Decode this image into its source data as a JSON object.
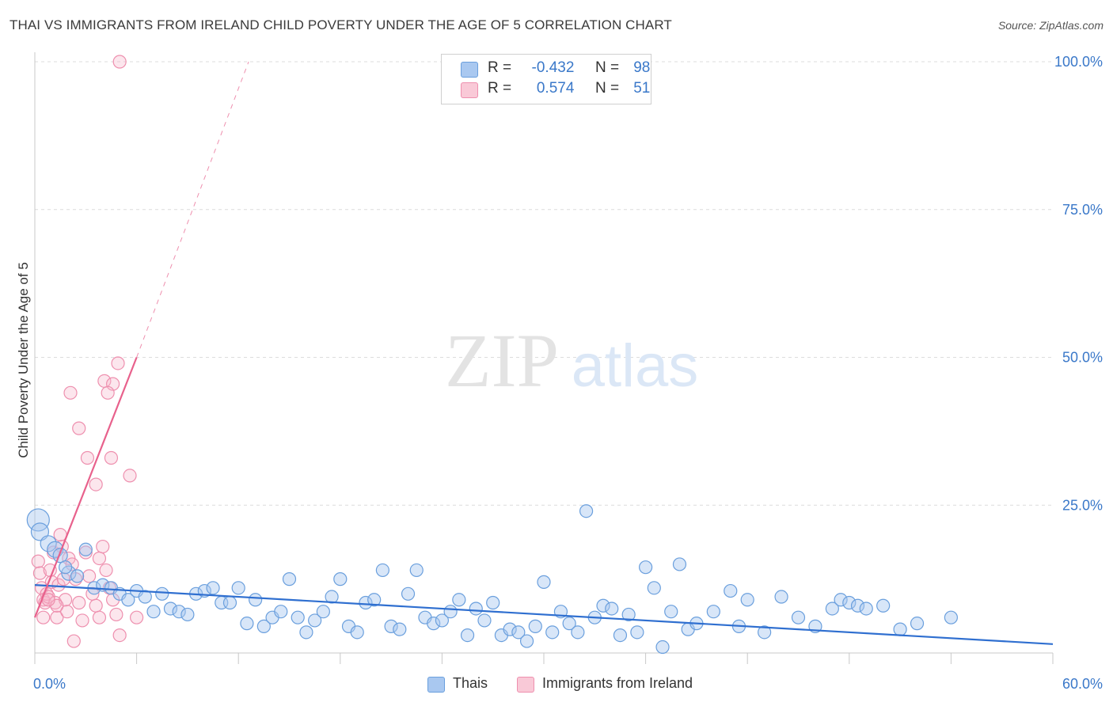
{
  "header": {
    "title": "THAI VS IMMIGRANTS FROM IRELAND CHILD POVERTY UNDER THE AGE OF 5 CORRELATION CHART",
    "source": "Source: ZipAtlas.com"
  },
  "watermark": {
    "zip": "ZIP",
    "atlas": "atlas"
  },
  "legend": {
    "series1": {
      "r_label": "R =",
      "r_value": "-0.432",
      "n_label": "N =",
      "n_value": "98"
    },
    "series2": {
      "r_label": "R =",
      "r_value": "0.574",
      "n_label": "N =",
      "n_value": "51"
    }
  },
  "bottom_legend": {
    "series1": "Thais",
    "series2": "Immigrants from Ireland"
  },
  "colors": {
    "blue_fill": "#a9c8f0",
    "blue_stroke": "#6a9fdd",
    "blue_line": "#2f6fd0",
    "pink_fill": "#f6b8cb",
    "pink_stroke": "#ee8fae",
    "pink_line": "#e8618c",
    "axis_text": "#3a78c9",
    "grid": "#dcdcdc"
  },
  "chart_data": {
    "type": "scatter",
    "title": "THAI VS IMMIGRANTS FROM IRELAND CHILD POVERTY UNDER THE AGE OF 5 CORRELATION CHART",
    "xlabel": "",
    "ylabel": "Child Poverty Under the Age of 5",
    "xlim": [
      0,
      60
    ],
    "ylim": [
      0,
      100
    ],
    "x_tick_labels": [
      "0.0%",
      "60.0%"
    ],
    "y_ticks": [
      25,
      50,
      75,
      100
    ],
    "y_tick_labels": [
      "25.0%",
      "50.0%",
      "75.0%",
      "100.0%"
    ],
    "grid": true,
    "series": [
      {
        "name": "Thais",
        "r": -0.432,
        "n": 98,
        "trend": {
          "x0": 0,
          "y0": 11.5,
          "x1": 60,
          "y1": 1.5
        },
        "points": [
          [
            0.2,
            22.5,
            14
          ],
          [
            0.3,
            20.5,
            11
          ],
          [
            0.8,
            18.5,
            10
          ],
          [
            1.2,
            17.5,
            10
          ],
          [
            1.5,
            16.5,
            9
          ],
          [
            2,
            13.5,
            9
          ],
          [
            1.8,
            14.5,
            8
          ],
          [
            2.5,
            13,
            8
          ],
          [
            3,
            17.5,
            8
          ],
          [
            3.5,
            11,
            8
          ],
          [
            4,
            11.5,
            8
          ],
          [
            4.5,
            11,
            8
          ],
          [
            5,
            10,
            8
          ],
          [
            5.5,
            9,
            8
          ],
          [
            6,
            10.5,
            8
          ],
          [
            6.5,
            9.5,
            8
          ],
          [
            7,
            7,
            8
          ],
          [
            7.5,
            10,
            8
          ],
          [
            8,
            7.5,
            8
          ],
          [
            8.5,
            7,
            8
          ],
          [
            9,
            6.5,
            8
          ],
          [
            9.5,
            10,
            8
          ],
          [
            10,
            10.5,
            8
          ],
          [
            10.5,
            11,
            8
          ],
          [
            11,
            8.5,
            8
          ],
          [
            11.5,
            8.5,
            8
          ],
          [
            12,
            11,
            8
          ],
          [
            12.5,
            5,
            8
          ],
          [
            13,
            9,
            8
          ],
          [
            13.5,
            4.5,
            8
          ],
          [
            14,
            6,
            8
          ],
          [
            14.5,
            7,
            8
          ],
          [
            15,
            12.5,
            8
          ],
          [
            15.5,
            6,
            8
          ],
          [
            16,
            3.5,
            8
          ],
          [
            16.5,
            5.5,
            8
          ],
          [
            17,
            7,
            8
          ],
          [
            17.5,
            9.5,
            8
          ],
          [
            18,
            12.5,
            8
          ],
          [
            18.5,
            4.5,
            8
          ],
          [
            19,
            3.5,
            8
          ],
          [
            19.5,
            8.5,
            8
          ],
          [
            20,
            9,
            8
          ],
          [
            20.5,
            14,
            8
          ],
          [
            21,
            4.5,
            8
          ],
          [
            21.5,
            4,
            8
          ],
          [
            22,
            10,
            8
          ],
          [
            22.5,
            14,
            8
          ],
          [
            23,
            6,
            8
          ],
          [
            23.5,
            5,
            8
          ],
          [
            24,
            5.5,
            8
          ],
          [
            24.5,
            7,
            8
          ],
          [
            25,
            9,
            8
          ],
          [
            25.5,
            3,
            8
          ],
          [
            26,
            7.5,
            8
          ],
          [
            26.5,
            5.5,
            8
          ],
          [
            27,
            8.5,
            8
          ],
          [
            27.5,
            3,
            8
          ],
          [
            28,
            4,
            8
          ],
          [
            28.5,
            3.5,
            8
          ],
          [
            29,
            2,
            8
          ],
          [
            29.5,
            4.5,
            8
          ],
          [
            30,
            12,
            8
          ],
          [
            30.5,
            3.5,
            8
          ],
          [
            31,
            7,
            8
          ],
          [
            31.5,
            5,
            8
          ],
          [
            32,
            3.5,
            8
          ],
          [
            32.5,
            24,
            8
          ],
          [
            33,
            6,
            8
          ],
          [
            33.5,
            8,
            8
          ],
          [
            34,
            7.5,
            8
          ],
          [
            34.5,
            3,
            8
          ],
          [
            35,
            6.5,
            8
          ],
          [
            35.5,
            3.5,
            8
          ],
          [
            36,
            14.5,
            8
          ],
          [
            36.5,
            11,
            8
          ],
          [
            37,
            1,
            8
          ],
          [
            37.5,
            7,
            8
          ],
          [
            38,
            15,
            8
          ],
          [
            38.5,
            4,
            8
          ],
          [
            39,
            5,
            8
          ],
          [
            40,
            7,
            8
          ],
          [
            41,
            10.5,
            8
          ],
          [
            41.5,
            4.5,
            8
          ],
          [
            42,
            9,
            8
          ],
          [
            43,
            3.5,
            8
          ],
          [
            44,
            9.5,
            8
          ],
          [
            45,
            6,
            8
          ],
          [
            46,
            4.5,
            8
          ],
          [
            47,
            7.5,
            8
          ],
          [
            47.5,
            9,
            8
          ],
          [
            48,
            8.5,
            8
          ],
          [
            48.5,
            8,
            8
          ],
          [
            49,
            7.5,
            8
          ],
          [
            50,
            8,
            8
          ],
          [
            51,
            4,
            8
          ],
          [
            52,
            5,
            8
          ],
          [
            54,
            6,
            8
          ]
        ]
      },
      {
        "name": "Immigrants from Ireland",
        "r": 0.574,
        "n": 51,
        "trend": {
          "x0": 0,
          "y0": 6,
          "x1": 6,
          "y1": 50
        },
        "trend_dashed_to": {
          "x": 12.6,
          "y": 100
        },
        "points": [
          [
            0.2,
            15.5,
            8
          ],
          [
            0.3,
            13.5,
            8
          ],
          [
            0.4,
            11,
            8
          ],
          [
            0.5,
            9,
            8
          ],
          [
            0.6,
            8.5,
            8
          ],
          [
            0.7,
            10,
            8
          ],
          [
            0.8,
            9.5,
            8
          ],
          [
            0.9,
            14,
            8
          ],
          [
            1,
            12,
            8
          ],
          [
            1.1,
            17,
            8
          ],
          [
            1.2,
            8.5,
            8
          ],
          [
            1.3,
            6,
            8
          ],
          [
            1.4,
            11.5,
            8
          ],
          [
            1.5,
            20,
            8
          ],
          [
            1.6,
            18,
            8
          ],
          [
            1.7,
            12.5,
            8
          ],
          [
            1.8,
            9,
            8
          ],
          [
            1.9,
            7,
            8
          ],
          [
            2,
            16,
            8
          ],
          [
            2.2,
            15,
            8
          ],
          [
            2.4,
            12.5,
            8
          ],
          [
            2.6,
            8.5,
            8
          ],
          [
            2.8,
            5.5,
            8
          ],
          [
            3,
            17,
            8
          ],
          [
            3.2,
            13,
            8
          ],
          [
            3.4,
            10,
            8
          ],
          [
            3.6,
            8,
            8
          ],
          [
            3.8,
            6,
            8
          ],
          [
            4,
            18,
            8
          ],
          [
            4.2,
            14,
            8
          ],
          [
            4.4,
            11,
            8
          ],
          [
            4.6,
            9,
            8
          ],
          [
            4.8,
            6.5,
            8
          ],
          [
            5,
            3,
            8
          ],
          [
            2.1,
            44,
            8
          ],
          [
            2.6,
            38,
            8
          ],
          [
            3.1,
            33,
            8
          ],
          [
            3.6,
            28.5,
            8
          ],
          [
            4.1,
            46,
            8
          ],
          [
            4.6,
            45.5,
            8
          ],
          [
            4.3,
            44,
            8
          ],
          [
            4.5,
            33,
            8
          ],
          [
            3.8,
            16,
            8
          ],
          [
            4.9,
            49,
            8
          ],
          [
            5.6,
            30,
            8
          ],
          [
            6,
            6,
            8
          ],
          [
            2.3,
            2,
            8
          ],
          [
            5,
            100,
            8
          ],
          [
            0.5,
            6,
            8
          ],
          [
            1.3,
            8,
            8
          ],
          [
            0.8,
            9,
            8
          ]
        ]
      }
    ]
  }
}
